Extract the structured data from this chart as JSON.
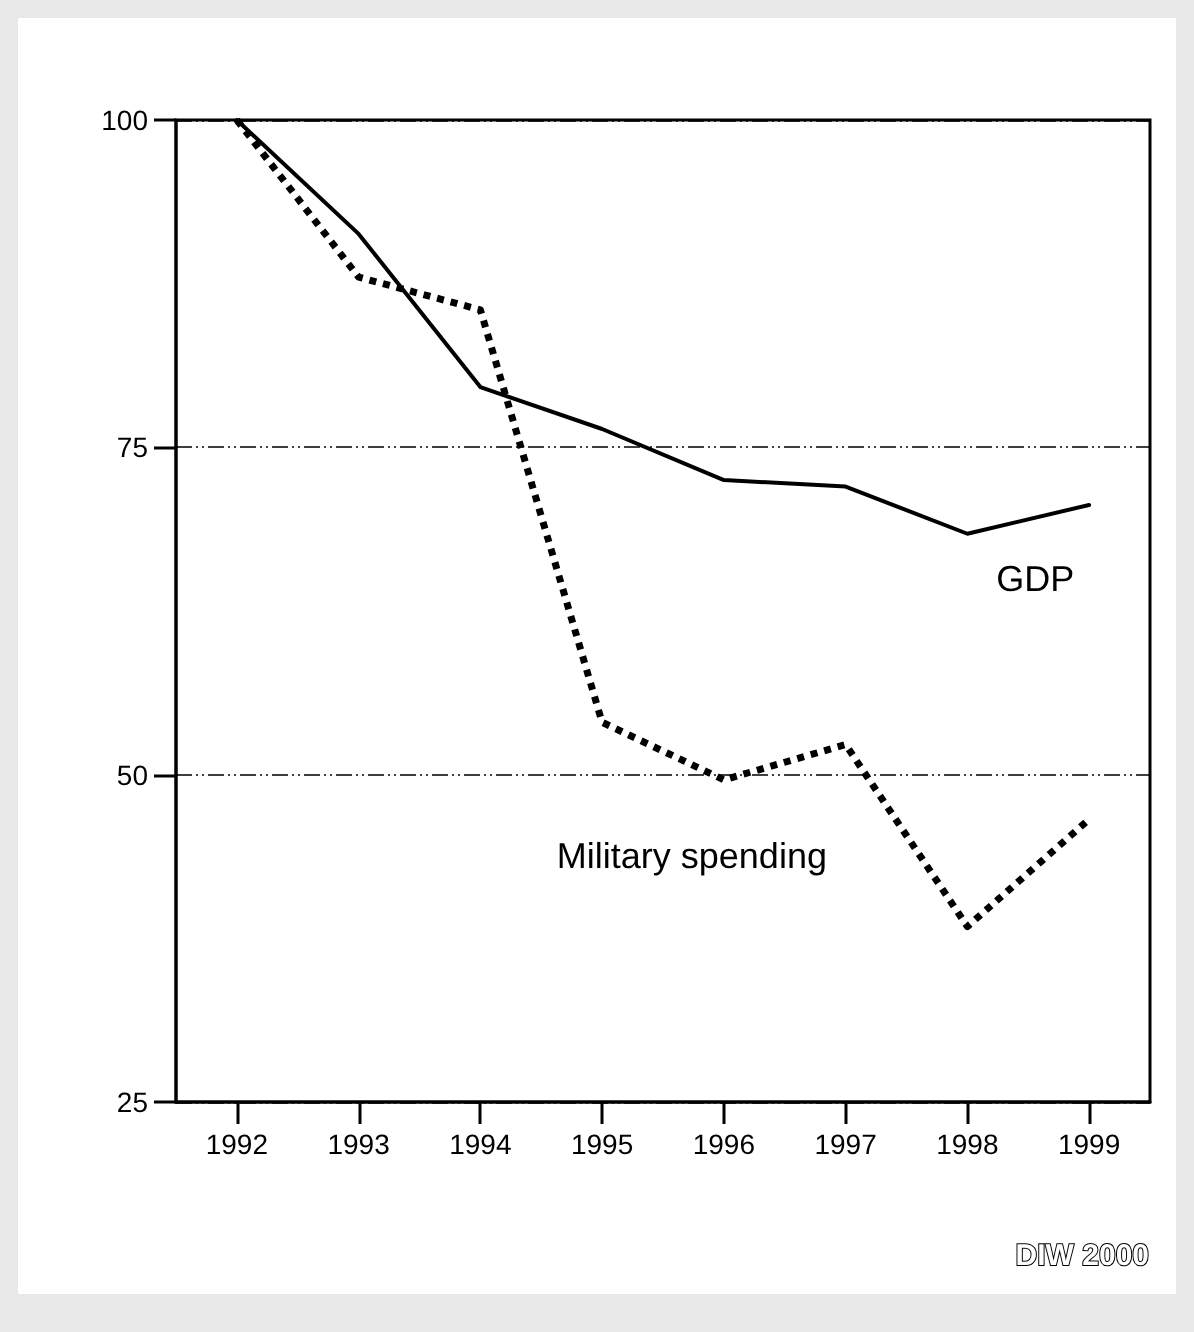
{
  "chart_data": {
    "type": "line",
    "categories": [
      "1992",
      "1993",
      "1994",
      "1995",
      "1996",
      "1997",
      "1998",
      "1999"
    ],
    "series": [
      {
        "name": "GDP",
        "color": "#000000",
        "line_style": "solid",
        "values": [
          100,
          91.3,
          79.6,
          76.4,
          72.5,
          72.0,
          68.4,
          70.6
        ]
      },
      {
        "name": "Military spending",
        "color": "#000000",
        "line_style": "dotted",
        "values": [
          100,
          88.0,
          85.5,
          54.0,
          49.6,
          52.3,
          38.4,
          46.6
        ]
      }
    ],
    "ylim": [
      25,
      100
    ],
    "yticks": [
      25,
      50,
      75,
      100
    ],
    "grid": "y",
    "marker": "none",
    "legend": false,
    "annotations": [
      "DIW 2000"
    ]
  }
}
